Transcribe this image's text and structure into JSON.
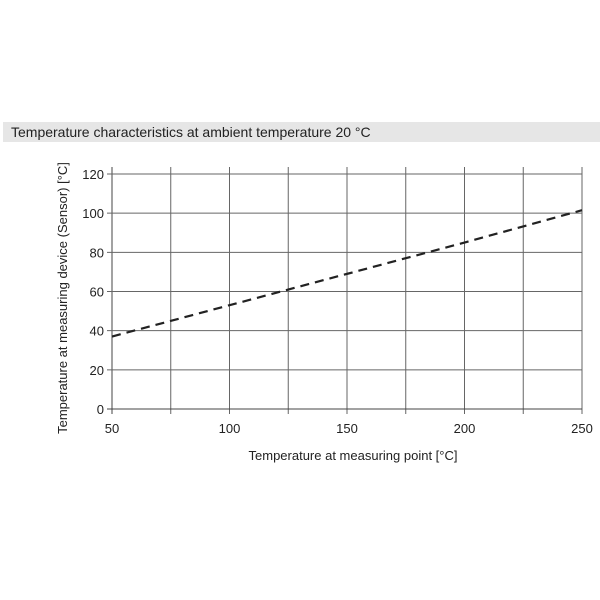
{
  "header": {
    "title": "Temperature characteristics at ambient temperature 20 °C"
  },
  "chart_data": {
    "type": "line",
    "title": "Temperature characteristics at ambient temperature 20 °C",
    "xlabel": "Temperature at measuring point [°C]",
    "ylabel": "Temperature at measuring device (Sensor) [°C]",
    "xlim": [
      50,
      250
    ],
    "ylim": [
      0,
      120
    ],
    "xticks": [
      50,
      100,
      150,
      200,
      250
    ],
    "xgrid": [
      50,
      75,
      100,
      125,
      150,
      175,
      200,
      225,
      250
    ],
    "yticks": [
      0,
      20,
      40,
      60,
      80,
      100,
      120
    ],
    "grid": true,
    "line_style": "dashed",
    "line_color": "#222222",
    "series": [
      {
        "x": [
          50,
          100,
          150,
          200,
          250
        ],
        "y": [
          37,
          53,
          69,
          85,
          101.5
        ]
      }
    ]
  }
}
